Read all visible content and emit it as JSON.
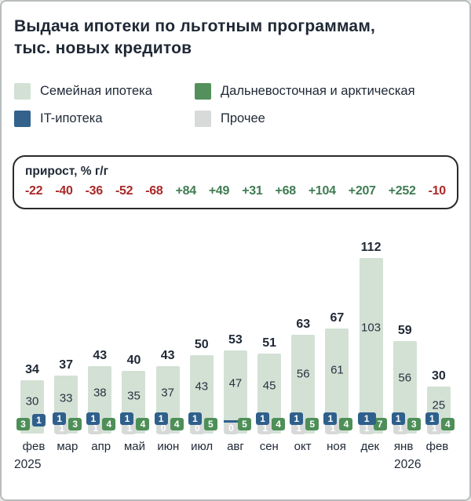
{
  "header": {
    "title_line1": "Выдача ипотеки по льготным программам,",
    "title_line2": "тыс. новых кредитов"
  },
  "legend": {
    "items": [
      {
        "label": "Семейная ипотека",
        "color": "#d3e1d5"
      },
      {
        "label": "Дальневосточная и арктическая",
        "color": "#53905b"
      },
      {
        "label": "IT-ипотека",
        "color": "#33628c"
      },
      {
        "label": "Прочее",
        "color": "#d7dad9"
      }
    ]
  },
  "colors": {
    "family": "#d3e1d5",
    "fareast": "#4e8f58",
    "it": "#2f608c",
    "other": "#d6d9d8",
    "text_dark": "#1f2835",
    "growth_negative": "#ab2828",
    "growth_positive": "#3f7c52"
  },
  "chart_data": {
    "type": "bar",
    "stacked": true,
    "title": "Выдача ипотеки по льготным программам, тыс. новых кредитов",
    "categories": [
      "фев",
      "мар",
      "апр",
      "май",
      "июн",
      "июл",
      "авг",
      "сен",
      "окт",
      "ноя",
      "дек",
      "янв",
      "фев"
    ],
    "years": [
      {
        "label": "2025"
      },
      {
        "label": "2026"
      }
    ],
    "totals": [
      34,
      37,
      43,
      40,
      43,
      50,
      53,
      51,
      63,
      67,
      112,
      59,
      30
    ],
    "series": [
      {
        "name": "Семейная ипотека",
        "values": [
          30,
          33,
          38,
          35,
          37,
          43,
          47,
          45,
          56,
          61,
          103,
          56,
          25
        ]
      },
      {
        "name": "IT-ипотека",
        "values": [
          1,
          1,
          1,
          1,
          1,
          1,
          0,
          1,
          1,
          1,
          1,
          1,
          1
        ]
      },
      {
        "name": "Дальневосточная и арктическая",
        "values": [
          3,
          3,
          4,
          4,
          4,
          5,
          5,
          4,
          5,
          4,
          7,
          3,
          4
        ]
      },
      {
        "name": "Прочее",
        "values": [
          0,
          1,
          1,
          1,
          0,
          0,
          0,
          1,
          1,
          1,
          1,
          1,
          1
        ]
      }
    ],
    "growth": {
      "label": "прирост, % г/г",
      "values": [
        {
          "text": "-22",
          "trend": "neg"
        },
        {
          "text": "-40",
          "trend": "neg"
        },
        {
          "text": "-36",
          "trend": "neg"
        },
        {
          "text": "-52",
          "trend": "neg"
        },
        {
          "text": "-68",
          "trend": "neg"
        },
        {
          "text": "+84",
          "trend": "pos"
        },
        {
          "text": "+49",
          "trend": "pos"
        },
        {
          "text": "+31",
          "trend": "pos"
        },
        {
          "text": "+68",
          "trend": "pos"
        },
        {
          "text": "+104",
          "trend": "pos"
        },
        {
          "text": "+207",
          "trend": "pos"
        },
        {
          "text": "+252",
          "trend": "pos"
        },
        {
          "text": "-10",
          "trend": "neg"
        }
      ]
    },
    "columns": [
      {
        "month": "фев",
        "total": 34,
        "family": 30,
        "badges": [
          {
            "kind": "fareast",
            "value": "3",
            "pos": "l"
          },
          {
            "kind": "it",
            "value": "1",
            "pos": "tr"
          }
        ]
      },
      {
        "month": "мар",
        "total": 37,
        "family": 33,
        "badges": [
          {
            "kind": "other",
            "value": "1",
            "pos": "bl"
          },
          {
            "kind": "fareast",
            "value": "3",
            "pos": "r"
          },
          {
            "kind": "it",
            "value": "1",
            "pos": "tl"
          }
        ]
      },
      {
        "month": "апр",
        "total": 43,
        "family": 38,
        "badges": [
          {
            "kind": "other",
            "value": "1",
            "pos": "bl"
          },
          {
            "kind": "fareast",
            "value": "4",
            "pos": "r"
          },
          {
            "kind": "it",
            "value": "1",
            "pos": "tl"
          }
        ]
      },
      {
        "month": "май",
        "total": 40,
        "family": 35,
        "badges": [
          {
            "kind": "other",
            "value": "1",
            "pos": "bl"
          },
          {
            "kind": "fareast",
            "value": "4",
            "pos": "r"
          },
          {
            "kind": "it",
            "value": "1",
            "pos": "tl"
          }
        ]
      },
      {
        "month": "июн",
        "total": 43,
        "family": 37,
        "badges": [
          {
            "kind": "other",
            "value": "0",
            "pos": "bl"
          },
          {
            "kind": "fareast",
            "value": "4",
            "pos": "r"
          },
          {
            "kind": "it",
            "value": "1",
            "pos": "tl"
          }
        ]
      },
      {
        "month": "июл",
        "total": 50,
        "family": 43,
        "badges": [
          {
            "kind": "other",
            "value": "0",
            "pos": "bl"
          },
          {
            "kind": "fareast",
            "value": "5",
            "pos": "r"
          },
          {
            "kind": "it",
            "value": "1",
            "pos": "tl"
          }
        ]
      },
      {
        "month": "авг",
        "total": 53,
        "family": 47,
        "strip": true,
        "badges": [
          {
            "kind": "other",
            "value": "0",
            "pos": "bl"
          },
          {
            "kind": "fareast",
            "value": "5",
            "pos": "r"
          }
        ]
      },
      {
        "month": "сен",
        "total": 51,
        "family": 45,
        "badges": [
          {
            "kind": "other",
            "value": "1",
            "pos": "bl"
          },
          {
            "kind": "fareast",
            "value": "4",
            "pos": "r"
          },
          {
            "kind": "it",
            "value": "1",
            "pos": "tl"
          }
        ]
      },
      {
        "month": "окт",
        "total": 63,
        "family": 56,
        "badges": [
          {
            "kind": "other",
            "value": "1",
            "pos": "bl"
          },
          {
            "kind": "fareast",
            "value": "5",
            "pos": "r"
          },
          {
            "kind": "it",
            "value": "1",
            "pos": "tl"
          }
        ]
      },
      {
        "month": "ноя",
        "total": 67,
        "family": 61,
        "badges": [
          {
            "kind": "other",
            "value": "1",
            "pos": "bl"
          },
          {
            "kind": "fareast",
            "value": "4",
            "pos": "r"
          },
          {
            "kind": "it",
            "value": "1",
            "pos": "tl"
          }
        ]
      },
      {
        "month": "дек",
        "total": 112,
        "family": 103,
        "badges": [
          {
            "kind": "other",
            "value": "1",
            "pos": "bl"
          },
          {
            "kind": "fareast",
            "value": "7",
            "pos": "r"
          },
          {
            "kind": "it",
            "value": "1",
            "pos": "tl",
            "wide": true
          }
        ]
      },
      {
        "month": "янв",
        "total": 59,
        "family": 56,
        "badges": [
          {
            "kind": "other",
            "value": "1",
            "pos": "bl"
          },
          {
            "kind": "fareast",
            "value": "3",
            "pos": "r"
          },
          {
            "kind": "it",
            "value": "1",
            "pos": "tl"
          }
        ]
      },
      {
        "month": "фев",
        "total": 30,
        "family": 25,
        "badges": [
          {
            "kind": "other",
            "value": "1",
            "pos": "bl"
          },
          {
            "kind": "fareast",
            "value": "4",
            "pos": "r"
          },
          {
            "kind": "it",
            "value": "1",
            "pos": "tl"
          }
        ]
      }
    ],
    "ylim": [
      0,
      120
    ],
    "grid": false,
    "legend_position": "top"
  }
}
